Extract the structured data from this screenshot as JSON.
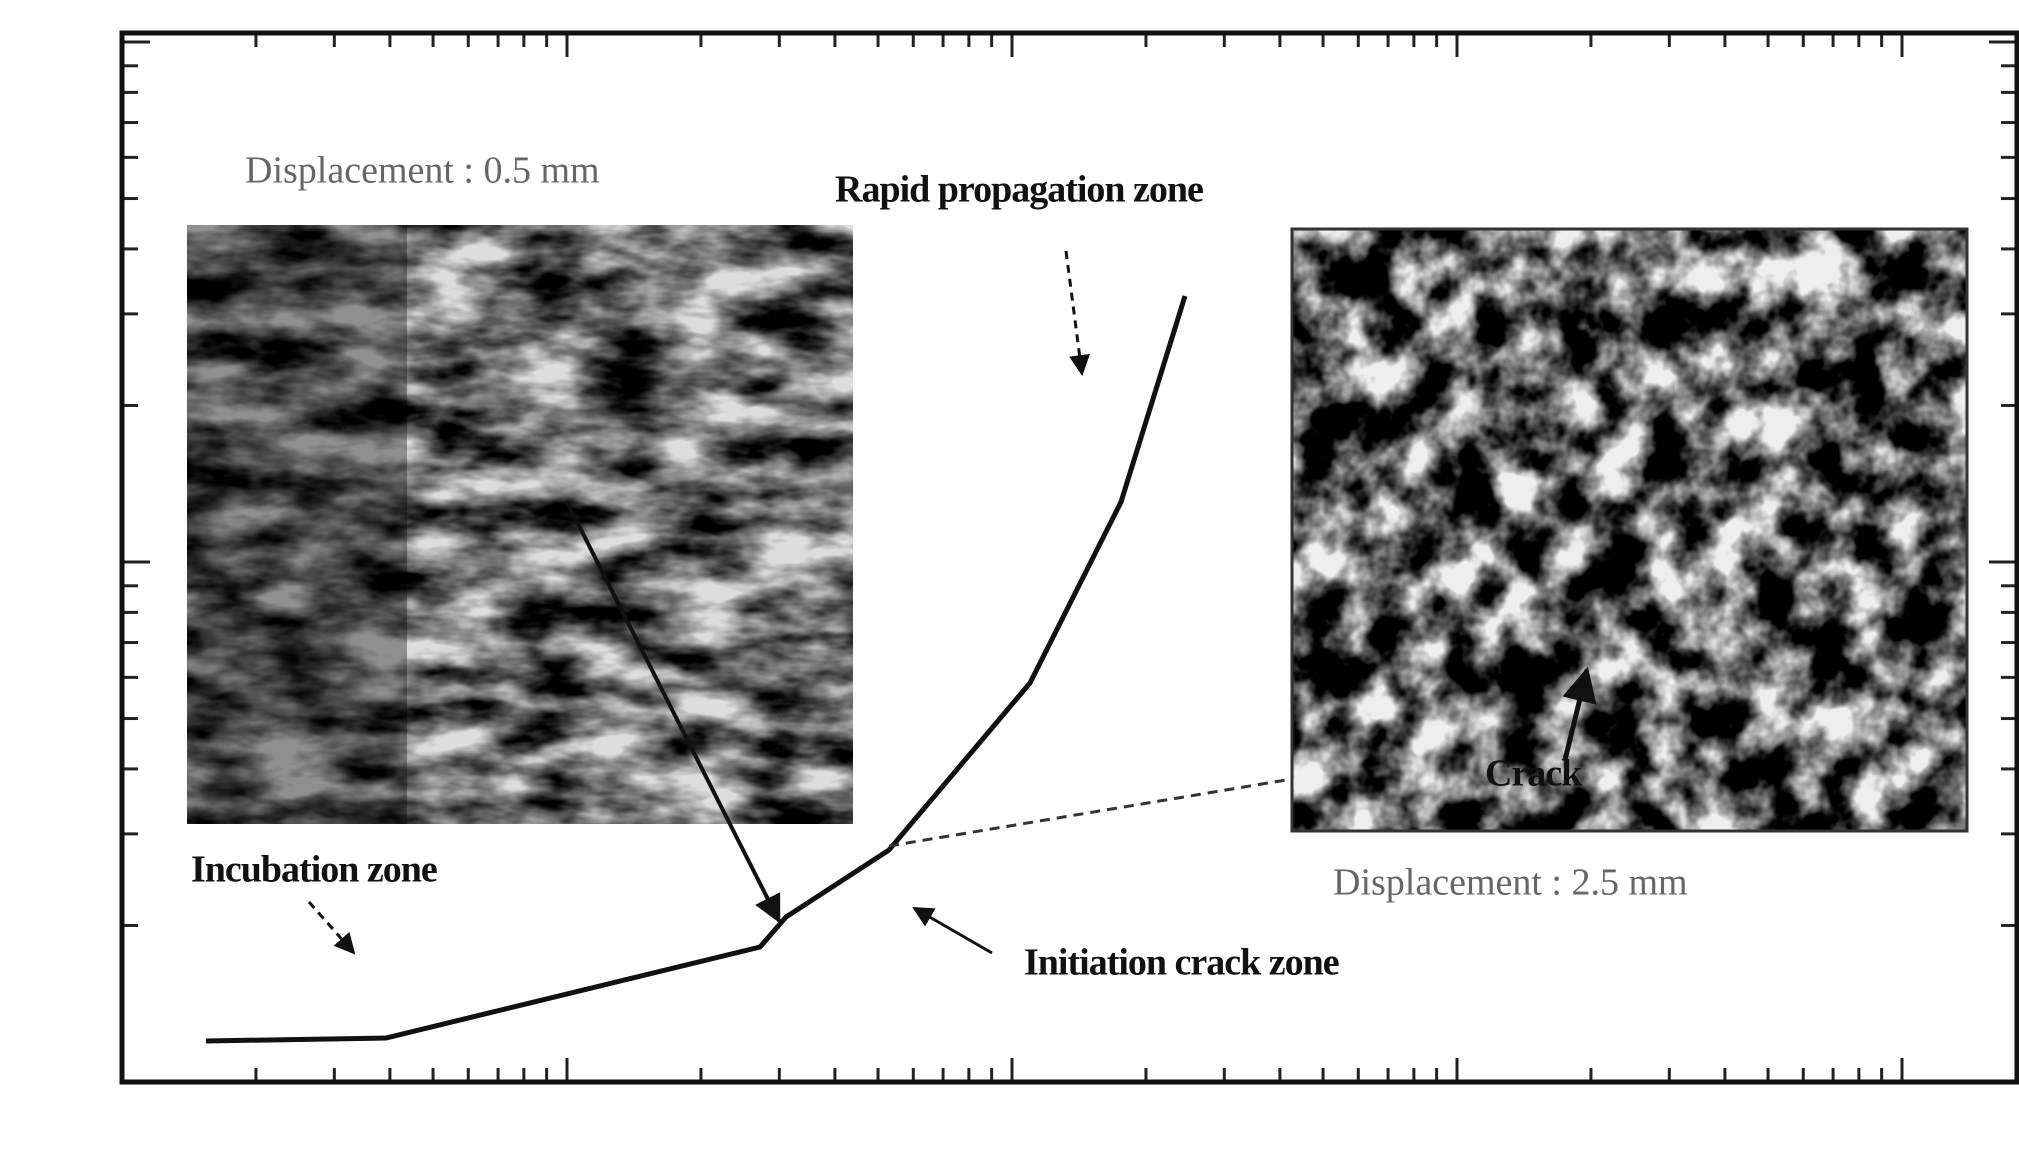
{
  "annotations": {
    "left_inset_caption": "Displacement : 0.5 mm",
    "rapid_zone": "Rapid propagation zone",
    "incubation_zone": "Incubation zone",
    "initiation_zone": "Initiation crack zone",
    "crack": "Crack",
    "right_inset_caption": "Displacement : 2.5 mm"
  }
}
